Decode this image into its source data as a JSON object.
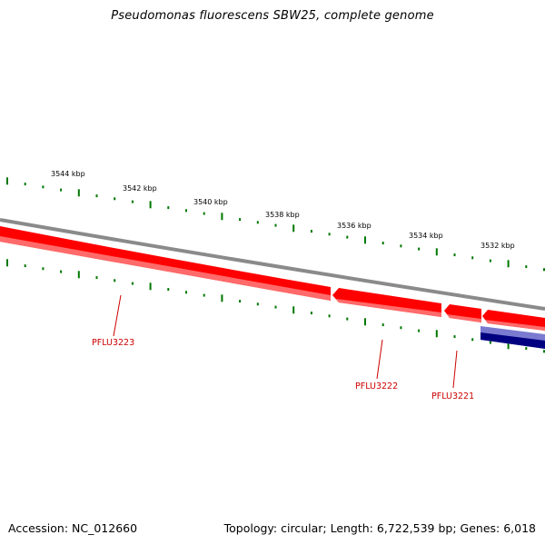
{
  "title": "Pseudomonas fluorescens SBW25, complete genome",
  "footer": {
    "accession": "Accession: NC_012660",
    "summary": "Topology: circular; Length: 6,722,539 bp; Genes: 6,018"
  },
  "colors": {
    "backbone": "#808080",
    "forward_gene": "#ff0000",
    "reverse_gene": "#000080",
    "ticks": "#007700",
    "gene_label": "#cc0000"
  },
  "kbp_labels": [
    "3544 kbp",
    "3542 kbp",
    "3540 kbp",
    "3538 kbp",
    "3536 kbp",
    "3534 kbp",
    "3532 kbp"
  ],
  "genes": [
    "PFLU3223",
    "PFLU3222",
    "PFLU3221"
  ]
}
